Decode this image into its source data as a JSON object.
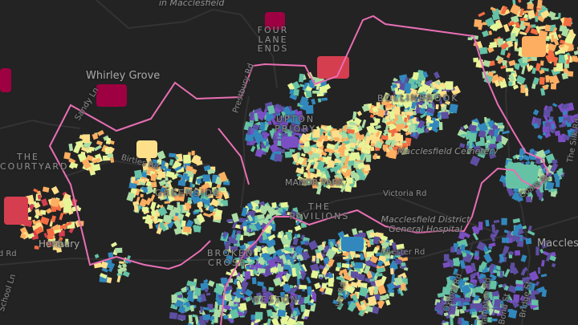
{
  "map": {
    "theme": "dark",
    "boundary_color": "#e86fb4",
    "building_palette": [
      "#9e0142",
      "#d53e4f",
      "#f46d43",
      "#fdae61",
      "#fee08b",
      "#e6f598",
      "#abdda4",
      "#66c2a5",
      "#3288bd",
      "#5e4fa2",
      "#7b4fc4"
    ],
    "labels": {
      "in_macclesfield": "in Macclesfield",
      "four_lane_ends": "FOUR LANE ENDS",
      "whirley_grove": "Whirley Grove",
      "sandy_ln": "Sandy Ln",
      "prestbury_rd": "Prestbury Rd",
      "upton_priory": "UPTON PRIORY",
      "bollinbrook": "BOLLINBROOK",
      "the_courtyard": "THE COURTYARD",
      "birtles_rd": "Birtles Rd",
      "macclesfield_cemetery": "Macclesfield Cemetery",
      "greenside": "GREENSIDE",
      "manor_park": "MANOR PARK",
      "victoria_rd": "Victoria Rd",
      "coare_st": "Coare St",
      "the_silk_rd": "The Silk Rd",
      "the_pavilions": "THE PAVILIONS",
      "hospital": "Macclesfield District General Hospital",
      "henbury": "Henbury",
      "chelford_rd": "Chelford Rd",
      "school_ln": "School Ln",
      "broken_cross": "BROKEN CROSS",
      "chester_rd": "Chester Rd",
      "weston": "WESTON",
      "ivy_rd": "Ivy Rd",
      "oxford_rd": "Oxford Rd",
      "hampton_rd": "Hampton Rd",
      "bond_st": "Bond St",
      "bridge_st": "Bridge St",
      "macclesfield": "Macclesfield"
    }
  }
}
